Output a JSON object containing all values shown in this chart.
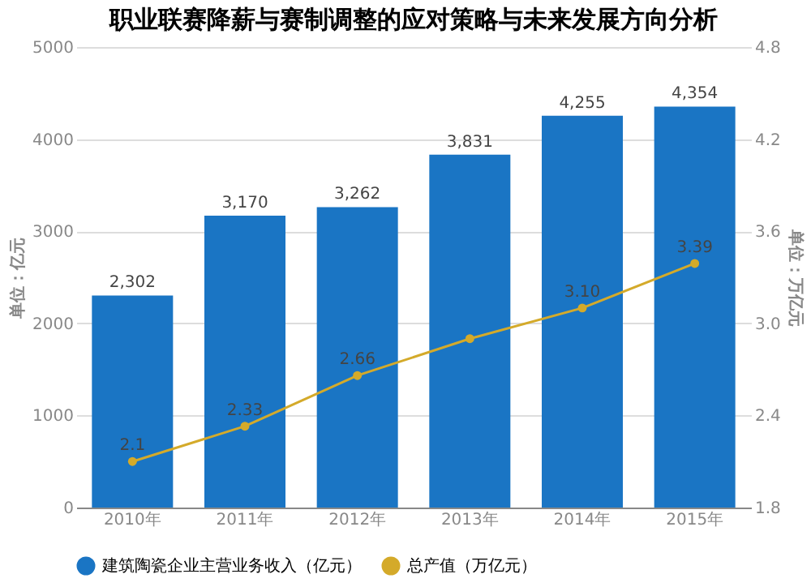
{
  "chart_data": {
    "type": "bar",
    "title": "职业联赛降薪与赛制调整的应对策略与未来发展方向分析",
    "categories": [
      "2010年",
      "2011年",
      "2012年",
      "2013年",
      "2014年",
      "2015年"
    ],
    "ylabel": "单位：亿元",
    "y2label": "单位：万亿元",
    "series": [
      {
        "name": "建筑陶瓷企业主营业务收入（亿元）",
        "color": "#1a75c4",
        "values": [
          2302,
          3170,
          3262,
          3831,
          4255,
          4354
        ],
        "value_labels": [
          "2,302",
          "3,170",
          "3,262",
          "3,831",
          "4,255",
          "4,354"
        ]
      },
      {
        "name": "总产值（万亿元）",
        "type": "line",
        "axis": "y2",
        "color": "#d4aa2a",
        "marker": "circle",
        "values": [
          2.1,
          2.33,
          2.66,
          2.9,
          3.1,
          3.39
        ],
        "value_labels": [
          "2.1",
          "2.33",
          "2.66",
          null,
          "3.10",
          "3.39"
        ]
      }
    ],
    "ylim": [
      0,
      5000
    ],
    "yticks": [
      0,
      1000,
      2000,
      3000,
      4000,
      5000
    ],
    "y2lim": [
      1.8,
      4.8
    ],
    "y2ticks": [
      1.8,
      2.4,
      {
        "value": 3.0,
        "label": "3.0"
      },
      3.6,
      4.2,
      4.8
    ],
    "grid": "y",
    "legend": "bottom"
  }
}
